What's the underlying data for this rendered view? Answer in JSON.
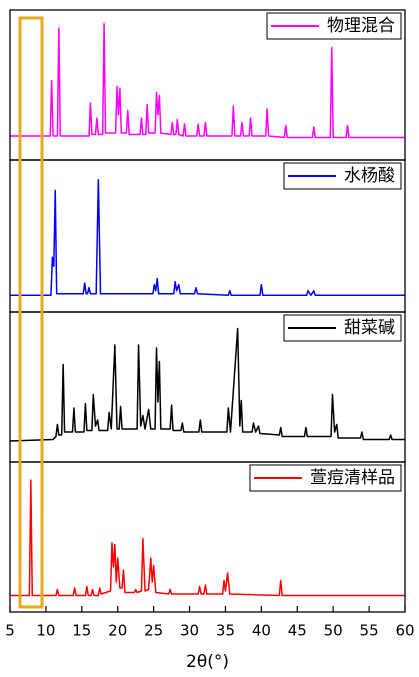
{
  "chart_data": [
    {
      "type": "line",
      "xlim": [
        5,
        60
      ],
      "ylim": [
        0,
        100
      ],
      "legend": "upper right",
      "series": [
        {
          "name": "物理混合",
          "color": "#ff00ff",
          "x": [
            5,
            10.6,
            10.8,
            11.0,
            11.6,
            11.8,
            12.0,
            16.0,
            16.2,
            16.4,
            16.9,
            17.1,
            17.3,
            17.9,
            18.1,
            18.3,
            19.7,
            19.9,
            20.1,
            20.3,
            20.5,
            21.2,
            21.4,
            21.6,
            23.1,
            23.3,
            23.5,
            23.9,
            24.1,
            24.3,
            25.2,
            25.4,
            25.6,
            25.8,
            26.0,
            27.4,
            27.6,
            27.8,
            28.1,
            28.3,
            28.5,
            29.1,
            29.3,
            29.5,
            31.0,
            31.2,
            31.4,
            32.0,
            32.2,
            32.4,
            35.9,
            36.1,
            36.3,
            37.1,
            37.3,
            37.5,
            38.3,
            38.5,
            38.7,
            40.6,
            40.8,
            41.0,
            43.2,
            43.4,
            43.6,
            47.1,
            47.3,
            47.5,
            49.6,
            49.8,
            50.0,
            51.8,
            52.0,
            52.2,
            60
          ],
          "values": [
            16,
            16,
            53,
            16,
            16,
            88,
            16,
            16,
            38,
            17,
            17,
            28,
            17,
            17,
            91,
            18,
            18,
            49,
            30,
            48,
            18,
            18,
            33,
            17,
            17,
            28,
            17,
            17,
            37,
            18,
            18,
            45,
            30,
            43,
            18,
            17,
            25,
            17,
            17,
            27,
            17,
            16,
            24,
            16,
            16,
            24,
            16,
            16,
            25,
            16,
            16,
            36,
            16,
            16,
            25,
            16,
            16,
            28,
            16,
            16,
            34,
            16,
            15,
            23,
            15,
            15,
            22,
            15,
            15,
            75,
            15,
            15,
            23,
            15,
            15
          ]
        }
      ]
    },
    {
      "type": "line",
      "xlim": [
        5,
        60
      ],
      "ylim": [
        0,
        100
      ],
      "legend": "upper right",
      "series": [
        {
          "name": "水杨酸",
          "color": "#0000ff",
          "x": [
            5,
            10.7,
            10.9,
            11.1,
            11.3,
            11.5,
            15.2,
            15.4,
            15.6,
            15.8,
            16.0,
            16.2,
            17.0,
            17.3,
            17.6,
            24.9,
            25.1,
            25.3,
            25.5,
            25.7,
            27.8,
            28.0,
            28.2,
            28.5,
            28.7,
            30.7,
            30.9,
            31.1,
            35.4,
            35.6,
            35.8,
            39.8,
            40.0,
            40.2,
            46.3,
            46.5,
            46.9,
            47.3,
            47.5,
            60
          ],
          "values": [
            11,
            11,
            36,
            30,
            80,
            12,
            12,
            19,
            12,
            12,
            16,
            12,
            12,
            87,
            12,
            12,
            18,
            14,
            22,
            12,
            12,
            20,
            14,
            18,
            12,
            12,
            16,
            12,
            11,
            14,
            11,
            11,
            18,
            11,
            11,
            14,
            11,
            14,
            11,
            11
          ]
        }
      ]
    },
    {
      "type": "line",
      "xlim": [
        5,
        60
      ],
      "ylim": [
        0,
        100
      ],
      "legend": "upper right",
      "series": [
        {
          "name": "甜菜碱",
          "color": "#000000",
          "x": [
            5,
            11.0,
            11.4,
            11.6,
            11.8,
            12.2,
            12.4,
            12.6,
            13.7,
            13.9,
            14.1,
            15.3,
            15.5,
            15.7,
            16.4,
            16.6,
            16.9,
            17.2,
            17.4,
            18.6,
            18.8,
            19.1,
            19.6,
            19.9,
            20.2,
            20.4,
            20.6,
            22.7,
            22.9,
            23.2,
            23.5,
            23.8,
            24.3,
            24.6,
            25.2,
            25.4,
            25.6,
            25.8,
            26.0,
            27.3,
            27.5,
            27.7,
            28.8,
            29.0,
            29.2,
            31.3,
            31.5,
            31.7,
            35.2,
            35.4,
            35.7,
            36.7,
            37.0,
            37.2,
            37.4,
            38.7,
            38.9,
            39.2,
            39.6,
            39.8,
            42.5,
            42.7,
            42.9,
            46.0,
            46.2,
            46.4,
            49.7,
            49.9,
            50.2,
            50.5,
            50.7,
            53.8,
            54.0,
            54.2,
            57.8,
            58.0,
            58.2,
            60
          ],
          "values": [
            14,
            15,
            17,
            25,
            18,
            18,
            65,
            20,
            20,
            36,
            20,
            20,
            39,
            21,
            21,
            45,
            24,
            28,
            21,
            21,
            33,
            22,
            78,
            22,
            22,
            37,
            22,
            22,
            78,
            24,
            31,
            22,
            35,
            22,
            22,
            76,
            40,
            67,
            22,
            22,
            38,
            21,
            21,
            26,
            20,
            20,
            28,
            20,
            20,
            36,
            20,
            89,
            24,
            41,
            20,
            20,
            26,
            20,
            24,
            19,
            18,
            23,
            17,
            17,
            23,
            17,
            17,
            45,
            20,
            25,
            16,
            16,
            20,
            15,
            15,
            18,
            15,
            15
          ]
        }
      ]
    },
    {
      "type": "line",
      "xlim": [
        5,
        60
      ],
      "ylim": [
        0,
        100
      ],
      "legend": "upper right",
      "xticks": [
        5,
        10,
        15,
        20,
        25,
        30,
        35,
        40,
        45,
        50,
        55,
        60
      ],
      "xlabel": "2θ(°)",
      "series": [
        {
          "name": "萱痘清样品",
          "color": "#ff0000",
          "x": [
            5,
            7.7,
            7.9,
            8.1,
            11.4,
            11.6,
            11.8,
            13.8,
            14.0,
            14.2,
            15.5,
            15.7,
            15.9,
            16.3,
            16.5,
            16.7,
            17.3,
            17.5,
            17.7,
            19.0,
            19.2,
            19.4,
            19.6,
            19.8,
            20.0,
            20.3,
            20.6,
            20.8,
            21.0,
            22.3,
            22.5,
            22.7,
            23.3,
            23.5,
            23.8,
            24.3,
            24.6,
            24.8,
            25.0,
            25.3,
            27.1,
            27.3,
            27.5,
            31.2,
            31.4,
            31.6,
            32.0,
            32.2,
            32.4,
            34.6,
            34.8,
            35.0,
            35.3,
            35.6,
            42.5,
            42.7,
            42.9,
            60
          ],
          "values": [
            11,
            11,
            88,
            11,
            11,
            15,
            11,
            11,
            16,
            11,
            11,
            17,
            11,
            11,
            15,
            11,
            11,
            16,
            12,
            14,
            46,
            30,
            45,
            20,
            36,
            16,
            16,
            28,
            13,
            13,
            15,
            13,
            14,
            49,
            14,
            15,
            36,
            20,
            31,
            13,
            12,
            15,
            12,
            12,
            17,
            12,
            12,
            18,
            12,
            12,
            21,
            14,
            26,
            12,
            11,
            21,
            11,
            11
          ]
        }
      ]
    }
  ]
}
